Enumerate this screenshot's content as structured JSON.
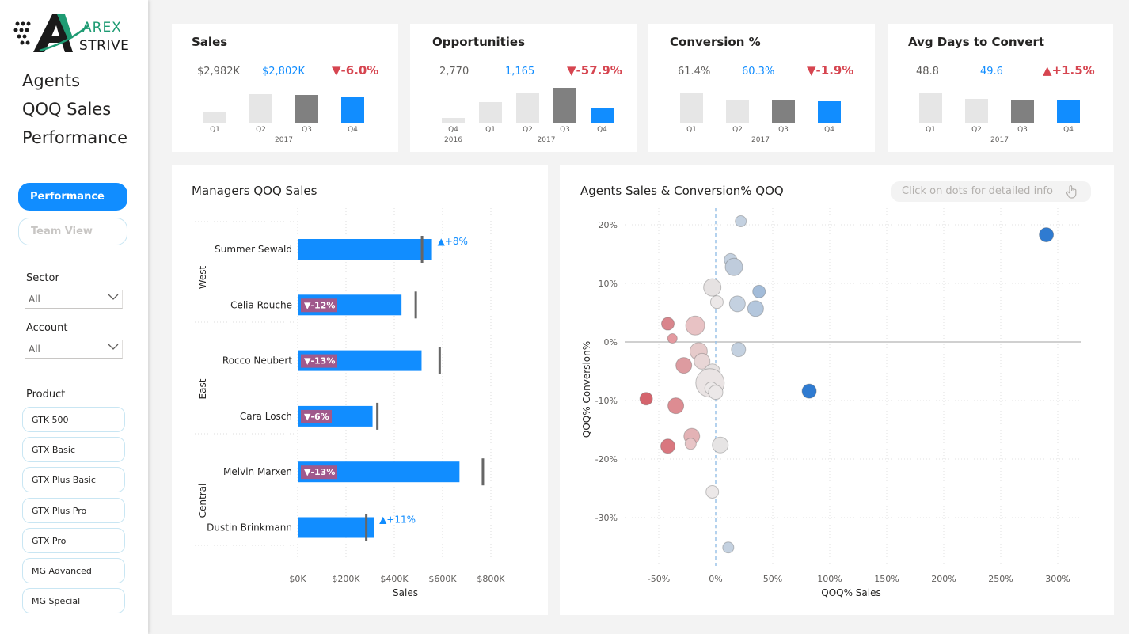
{
  "sidebar": {
    "logo_top": "AREX",
    "logo_bottom": "STRIVE",
    "title_lines": [
      "Agents",
      "QOQ Sales",
      "Performance"
    ],
    "nav": [
      {
        "label": "Performance",
        "active": true
      },
      {
        "label": "Team View",
        "active": false
      }
    ],
    "filters": [
      {
        "label": "Sector",
        "value": "All"
      },
      {
        "label": "Account",
        "value": "All"
      }
    ],
    "product_label": "Product",
    "products": [
      "GTK 500",
      "GTX Basic",
      "GTX Plus Basic",
      "GTX Plus Pro",
      "GTX Pro",
      "MG Advanced",
      "MG Special"
    ]
  },
  "kpis": [
    {
      "title": "Sales",
      "prev": "$2,982K",
      "curr": "$2,802K",
      "change": "▼-6.0%",
      "dir": "down",
      "bars": [
        {
          "label": "Q1",
          "value": 13,
          "color": "#e6e6e6"
        },
        {
          "label": "Q2",
          "value": 36,
          "color": "#e6e6e6"
        },
        {
          "label": "Q3",
          "value": 35,
          "color": "#808080"
        },
        {
          "label": "Q4",
          "value": 33,
          "color": "#118dff"
        }
      ],
      "groups": [
        {
          "label": "2017",
          "from": 0,
          "to": 3
        }
      ]
    },
    {
      "title": "Opportunities",
      "prev": "2,770",
      "curr": "1,165",
      "change": "▼-57.9%",
      "dir": "down",
      "bars": [
        {
          "label": "Q4",
          "value": 6,
          "color": "#e6e6e6"
        },
        {
          "label": "Q1",
          "value": 26,
          "color": "#e6e6e6"
        },
        {
          "label": "Q2",
          "value": 38,
          "color": "#e6e6e6"
        },
        {
          "label": "Q3",
          "value": 44,
          "color": "#808080"
        },
        {
          "label": "Q4",
          "value": 19,
          "color": "#118dff"
        }
      ],
      "groups": [
        {
          "label": "2016",
          "from": 0,
          "to": 0
        },
        {
          "label": "2017",
          "from": 1,
          "to": 4
        }
      ]
    },
    {
      "title": "Conversion %",
      "prev": "61.4%",
      "curr": "60.3%",
      "change": "▼-1.9%",
      "dir": "down",
      "bars": [
        {
          "label": "Q1",
          "value": 38,
          "color": "#e6e6e6"
        },
        {
          "label": "Q2",
          "value": 29,
          "color": "#e6e6e6"
        },
        {
          "label": "Q3",
          "value": 29,
          "color": "#808080"
        },
        {
          "label": "Q4",
          "value": 28,
          "color": "#118dff"
        }
      ],
      "groups": [
        {
          "label": "2017",
          "from": 0,
          "to": 3
        }
      ]
    },
    {
      "title": "Avg Days to Convert",
      "prev": "48.8",
      "curr": "49.6",
      "change": "▲+1.5%",
      "dir": "up",
      "bars": [
        {
          "label": "Q1",
          "value": 38,
          "color": "#e6e6e6"
        },
        {
          "label": "Q2",
          "value": 30,
          "color": "#e6e6e6"
        },
        {
          "label": "Q3",
          "value": 29,
          "color": "#808080"
        },
        {
          "label": "Q4",
          "value": 29,
          "color": "#118dff"
        }
      ],
      "groups": [
        {
          "label": "2017",
          "from": 0,
          "to": 3
        }
      ]
    }
  ],
  "managers": {
    "title": "Managers QOQ Sales",
    "xlabel": "Sales",
    "xticks": [
      "$0K",
      "$200K",
      "$400K",
      "$600K",
      "$800K"
    ],
    "xmax": 800,
    "groups": [
      "West",
      "East",
      "Central"
    ],
    "rows": [
      {
        "name": "Summer Sewald",
        "group": "West",
        "value": 556,
        "target": 515,
        "change": "+8%",
        "dir": "up"
      },
      {
        "name": "Celia Rouche",
        "group": "West",
        "value": 430,
        "target": 489,
        "change": "-12%",
        "dir": "down"
      },
      {
        "name": "Rocco Neubert",
        "group": "East",
        "value": 513,
        "target": 588,
        "change": "-13%",
        "dir": "down"
      },
      {
        "name": "Cara Losch",
        "group": "East",
        "value": 310,
        "target": 330,
        "change": "-6%",
        "dir": "down"
      },
      {
        "name": "Melvin Marxen",
        "group": "Central",
        "value": 670,
        "target": 767,
        "change": "-13%",
        "dir": "down"
      },
      {
        "name": "Dustin Brinkmann",
        "group": "Central",
        "value": 315,
        "target": 284,
        "change": "+11%",
        "dir": "up"
      }
    ]
  },
  "scatter": {
    "title": "Agents Sales & Conversion% QOQ",
    "hint": "Click on dots for detailed info",
    "chart_data": {
      "type": "scatter",
      "xlabel": "QOQ% Sales",
      "ylabel": "QOQ% Conversion%",
      "xlim": [
        -60,
        310
      ],
      "ylim": [
        -37,
        23
      ],
      "xticks": [
        -50,
        0,
        50,
        100,
        150,
        200,
        250,
        300
      ],
      "xtick_labels": [
        "-50%",
        "0%",
        "50%",
        "100%",
        "150%",
        "200%",
        "250%",
        "300%"
      ],
      "yticks": [
        20,
        10,
        0,
        -10,
        -20,
        -30
      ],
      "ytick_labels": [
        "20%",
        "10%",
        "0%",
        "-10%",
        "-20%",
        "-30%"
      ],
      "points": [
        {
          "x": 22,
          "y": 20.6,
          "size": 7,
          "color": "#c4d1e0"
        },
        {
          "x": 290,
          "y": 18.3,
          "size": 9,
          "color": "#2f7bd1"
        },
        {
          "x": 13,
          "y": 14.0,
          "size": 8,
          "color": "#c4d1e0"
        },
        {
          "x": 16,
          "y": 12.8,
          "size": 11,
          "color": "#bfccdc"
        },
        {
          "x": 38,
          "y": 8.6,
          "size": 8,
          "color": "#a3bcd9"
        },
        {
          "x": -3,
          "y": 9.3,
          "size": 11,
          "color": "#e6e2e2"
        },
        {
          "x": 19,
          "y": 6.5,
          "size": 10,
          "color": "#c4d1e0"
        },
        {
          "x": 1,
          "y": 6.8,
          "size": 8,
          "color": "#ece8e8"
        },
        {
          "x": 35,
          "y": 5.7,
          "size": 10,
          "color": "#b4c7dd"
        },
        {
          "x": -42,
          "y": 3.1,
          "size": 8,
          "color": "#d9858c"
        },
        {
          "x": -18,
          "y": 2.8,
          "size": 12,
          "color": "#e8c2c4"
        },
        {
          "x": -38,
          "y": 0.6,
          "size": 6,
          "color": "#e49aa0"
        },
        {
          "x": 20,
          "y": -1.3,
          "size": 9,
          "color": "#c4d1e0"
        },
        {
          "x": -15,
          "y": -1.6,
          "size": 11,
          "color": "#e6caca"
        },
        {
          "x": -12,
          "y": -3.3,
          "size": 10,
          "color": "#e8d6d6"
        },
        {
          "x": -28,
          "y": -4.0,
          "size": 10,
          "color": "#dd9ba0"
        },
        {
          "x": -3,
          "y": -5.1,
          "size": 10,
          "color": "#e6e2e2"
        },
        {
          "x": -5,
          "y": -7.0,
          "size": 18,
          "color": "#eae4e4"
        },
        {
          "x": -4,
          "y": -7.9,
          "size": 8,
          "color": "#ece8e8"
        },
        {
          "x": 0,
          "y": -8.6,
          "size": 9,
          "color": "#ece8e8"
        },
        {
          "x": 82,
          "y": -8.4,
          "size": 9,
          "color": "#2f7bd1"
        },
        {
          "x": -61,
          "y": -9.7,
          "size": 8,
          "color": "#d5646d"
        },
        {
          "x": -35,
          "y": -10.9,
          "size": 10,
          "color": "#dd8c92"
        },
        {
          "x": -21,
          "y": -16.1,
          "size": 10,
          "color": "#e3b2b5"
        },
        {
          "x": -42,
          "y": -17.8,
          "size": 9,
          "color": "#d9777f"
        },
        {
          "x": -22,
          "y": -17.4,
          "size": 7,
          "color": "#e8c5c7"
        },
        {
          "x": 4,
          "y": -17.6,
          "size": 10,
          "color": "#e6e4e4"
        },
        {
          "x": -3,
          "y": -25.6,
          "size": 8,
          "color": "#ece8e8"
        },
        {
          "x": 11,
          "y": -35.1,
          "size": 7,
          "color": "#c4d1e0"
        }
      ]
    }
  }
}
